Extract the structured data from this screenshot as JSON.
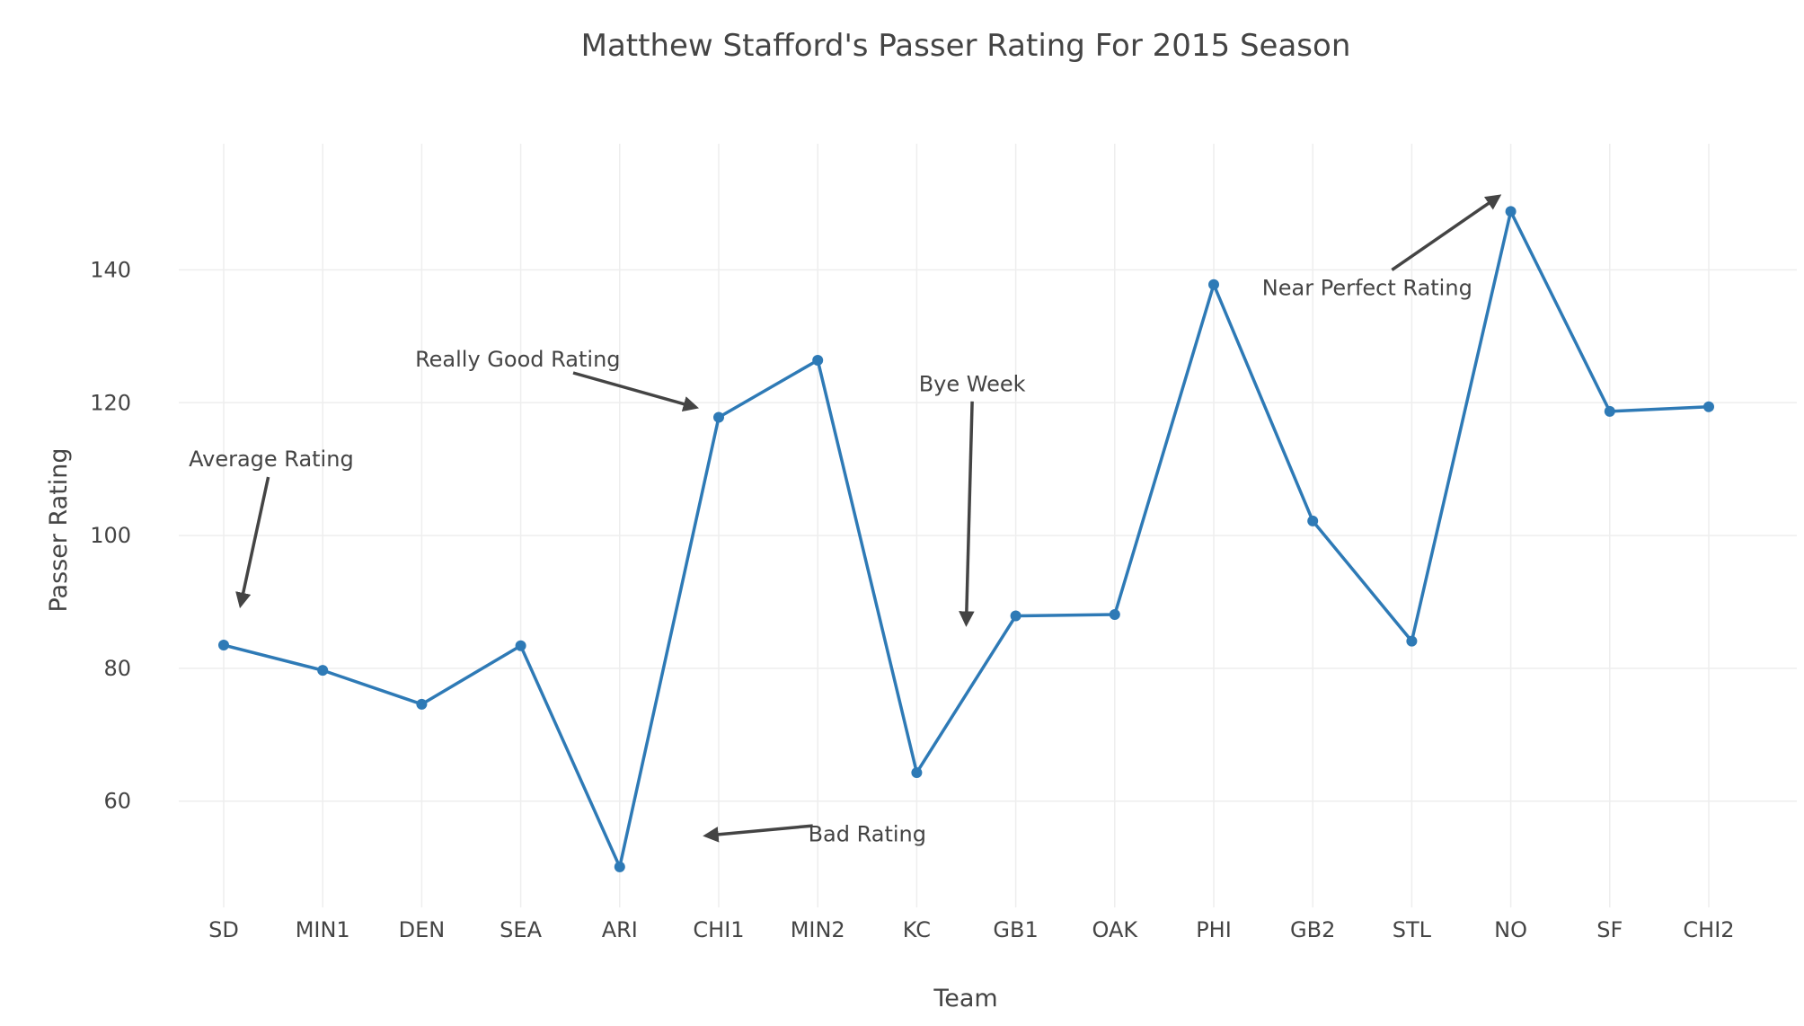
{
  "chart_data": {
    "type": "line",
    "title": "Matthew Stafford's Passer Rating For 2015 Season",
    "xlabel": "Team",
    "ylabel": "Passer Rating",
    "categories": [
      "SD",
      "MIN1",
      "DEN",
      "SEA",
      "ARI",
      "CHI1",
      "MIN2",
      "KC",
      "GB1",
      "OAK",
      "PHI",
      "GB2",
      "STL",
      "NO",
      "SF",
      "CHI2"
    ],
    "series": [
      {
        "values": [
          83.5,
          79.7,
          74.6,
          83.4,
          50.1,
          117.8,
          126.4,
          64.3,
          87.9,
          88.1,
          137.8,
          102.2,
          84.1,
          148.8,
          118.7,
          119.4
        ],
        "color": "#2e7ab6"
      }
    ],
    "ylim": [
      44,
      159
    ],
    "yticks": [
      60,
      80,
      100,
      120,
      140
    ],
    "grid": true,
    "legend": "none",
    "annotations": [
      {
        "text": "Average Rating",
        "text_x": 0.48,
        "text_y": 111.5,
        "arrow_from_x": 0.45,
        "arrow_from_y": 108.8,
        "arrow_to_x": 0.17,
        "arrow_to_y": 89.5
      },
      {
        "text": "Really Good Rating",
        "text_x": 2.97,
        "text_y": 126.5,
        "arrow_from_x": 3.53,
        "arrow_from_y": 124.5,
        "arrow_to_x": 4.77,
        "arrow_to_y": 119.3
      },
      {
        "text": "Bye Week",
        "text_x": 7.56,
        "text_y": 122.8,
        "arrow_from_x": 7.56,
        "arrow_from_y": 120.2,
        "arrow_to_x": 7.5,
        "arrow_to_y": 86.7
      },
      {
        "text": "Bad Rating",
        "text_x": 6.5,
        "text_y": 55.0,
        "arrow_from_x": 5.95,
        "arrow_from_y": 56.3,
        "arrow_to_x": 4.87,
        "arrow_to_y": 54.8
      },
      {
        "text": "Near Perfect Rating",
        "text_x": 11.55,
        "text_y": 137.3,
        "arrow_from_x": 11.8,
        "arrow_from_y": 140.0,
        "arrow_to_x": 12.88,
        "arrow_to_y": 151.1
      }
    ]
  }
}
